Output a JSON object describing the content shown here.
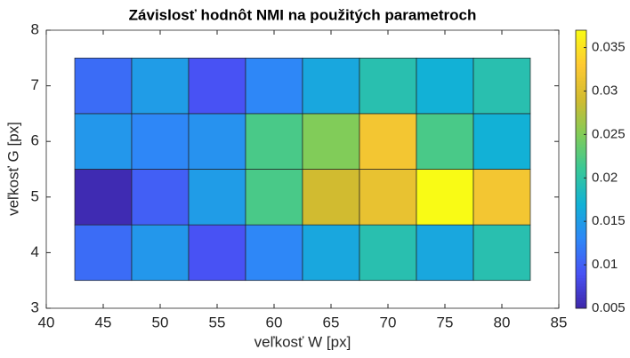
{
  "chart_data": {
    "type": "heatmap",
    "title": "Závislosť hodnôt NMI na použitých parametroch",
    "xlabel": "veľkosť W [px]",
    "ylabel": "veľkosť G [px]",
    "x": [
      45,
      50,
      55,
      60,
      65,
      70,
      75,
      80
    ],
    "y": [
      4,
      5,
      6,
      7
    ],
    "z": [
      [
        0.011,
        0.0145,
        0.009,
        0.013,
        0.016,
        0.0195,
        0.016,
        0.0195
      ],
      [
        0.0055,
        0.01,
        0.015,
        0.022,
        0.029,
        0.031,
        0.037,
        0.032
      ],
      [
        0.0145,
        0.013,
        0.014,
        0.022,
        0.025,
        0.032,
        0.022,
        0.017
      ],
      [
        0.011,
        0.015,
        0.009,
        0.013,
        0.016,
        0.0195,
        0.017,
        0.0195
      ]
    ],
    "xlim": [
      40,
      85
    ],
    "xticks": [
      40,
      45,
      50,
      55,
      60,
      65,
      70,
      75,
      80,
      85
    ],
    "ylim": [
      3,
      8
    ],
    "yticks": [
      3,
      4,
      5,
      6,
      7,
      8
    ],
    "clim": [
      0.005,
      0.037
    ],
    "cticks": [
      0.005,
      0.01,
      0.015,
      0.02,
      0.025,
      0.03,
      0.035
    ],
    "colormap": [
      "#3e26a8",
      "#4852f4",
      "#2e87f7",
      "#12b1d6",
      "#37c897",
      "#81cc59",
      "#d1bb30",
      "#fec932",
      "#f9fb15"
    ]
  }
}
